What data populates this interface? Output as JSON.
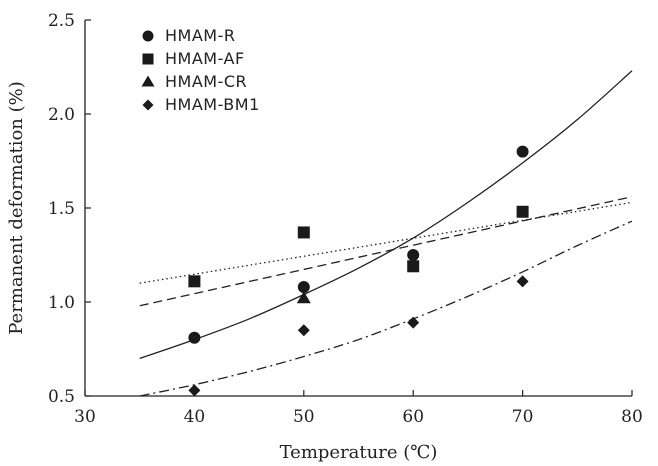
{
  "chart_data": {
    "type": "scatter",
    "xlabel": "Temperature (℃)",
    "ylabel": "Permanent deformation (%)",
    "xlim": [
      30,
      80
    ],
    "ylim": [
      0.5,
      2.5
    ],
    "xticks": [
      "30",
      "40",
      "50",
      "60",
      "70",
      "80"
    ],
    "yticks": [
      "0.5",
      "1.0",
      "1.5",
      "2.0",
      "2.5"
    ],
    "grid": false,
    "legend_position": "top-left",
    "series": [
      {
        "name": "HMAM-R",
        "marker": "circle",
        "points": [
          [
            40,
            0.81
          ],
          [
            50,
            1.08
          ],
          [
            60,
            1.25
          ],
          [
            70,
            1.8
          ]
        ],
        "fit_line": "solid",
        "fit_points": [
          [
            35,
            0.7
          ],
          [
            40,
            0.8
          ],
          [
            45,
            0.91
          ],
          [
            50,
            1.04
          ],
          [
            55,
            1.18
          ],
          [
            60,
            1.34
          ],
          [
            65,
            1.53
          ],
          [
            70,
            1.74
          ],
          [
            75,
            1.97
          ],
          [
            80,
            2.23
          ]
        ]
      },
      {
        "name": "HMAM-AF",
        "marker": "square",
        "points": [
          [
            40,
            1.11
          ],
          [
            50,
            1.37
          ],
          [
            60,
            1.19
          ],
          [
            70,
            1.48
          ]
        ],
        "fit_line": "dashed",
        "fit_points": [
          [
            35,
            0.98
          ],
          [
            80,
            1.56
          ]
        ]
      },
      {
        "name": "HMAM-CR",
        "marker": "triangle",
        "points": [
          [
            50,
            1.02
          ]
        ],
        "fit_line": "dotted",
        "fit_points": [
          [
            35,
            1.1
          ],
          [
            80,
            1.53
          ]
        ]
      },
      {
        "name": "HMAM-BM1",
        "marker": "diamond",
        "points": [
          [
            40,
            0.53
          ],
          [
            50,
            0.85
          ],
          [
            60,
            0.89
          ],
          [
            70,
            1.11
          ]
        ],
        "fit_line": "dash-dot",
        "fit_points": [
          [
            35,
            0.5
          ],
          [
            40,
            0.56
          ],
          [
            45,
            0.63
          ],
          [
            50,
            0.71
          ],
          [
            55,
            0.8
          ],
          [
            60,
            0.91
          ],
          [
            65,
            1.03
          ],
          [
            70,
            1.16
          ],
          [
            75,
            1.3
          ],
          [
            80,
            1.43
          ]
        ]
      }
    ]
  }
}
